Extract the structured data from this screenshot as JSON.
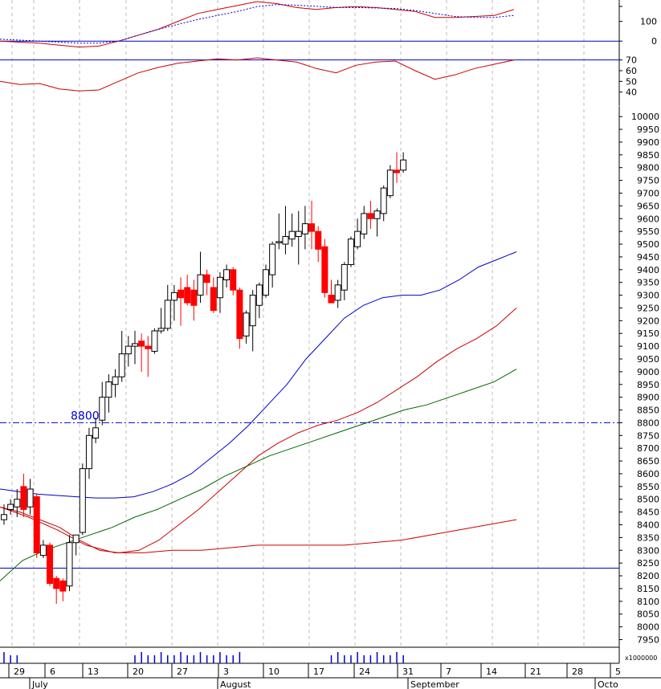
{
  "chart_data": {
    "type": "candlestick",
    "colors": {
      "up": "#ffffff",
      "down": "#ff0000",
      "candle_outline": "#000000",
      "ma_short": "#0000cc",
      "ma_mid": "#cc0000",
      "ma_long": "#006600",
      "reference_line": "#0000cc",
      "grid": "#bbbbbb",
      "volume": "#0000cc"
    },
    "price_axis": {
      "ticks": [
        7950,
        8000,
        8050,
        8100,
        8150,
        8200,
        8250,
        8300,
        8350,
        8400,
        8450,
        8500,
        8550,
        8600,
        8650,
        8700,
        8750,
        8800,
        8850,
        8900,
        8950,
        9000,
        9050,
        9100,
        9150,
        9200,
        9250,
        9300,
        9350,
        9400,
        9450,
        9500,
        9550,
        9600,
        9650,
        9700,
        9750,
        9800,
        9850,
        9900,
        9950,
        10000
      ],
      "range": [
        7920,
        10010
      ]
    },
    "oscillator_top": {
      "tick_labels": [
        "100",
        "0"
      ],
      "range": [
        -60,
        200
      ],
      "zero_line": 0,
      "line1": [
        0,
        -5,
        -10,
        -20,
        -30,
        -25,
        0,
        30,
        60,
        100,
        140,
        160,
        180,
        200,
        190,
        170,
        160,
        170,
        175,
        170,
        160,
        150,
        120,
        120,
        125,
        130,
        160
      ],
      "line2": [
        10,
        5,
        0,
        -5,
        -10,
        -10,
        0,
        30,
        60,
        85,
        110,
        130,
        150,
        175,
        185,
        182,
        176,
        170,
        170,
        168,
        165,
        155,
        140,
        125,
        120,
        120,
        130
      ]
    },
    "oscillator_rsi": {
      "tick_labels": [
        "70",
        "60",
        "50",
        "40"
      ],
      "range": [
        30,
        75
      ],
      "reference_line": 70,
      "line": [
        50,
        47,
        48,
        43,
        41,
        42,
        50,
        58,
        63,
        67,
        69,
        71,
        70,
        72,
        70,
        68,
        62,
        58,
        65,
        68,
        69,
        60,
        52,
        56,
        62,
        66,
        70
      ]
    },
    "x_axis": {
      "day_labels": [
        "29",
        "6",
        "13",
        "20",
        "27",
        "3",
        "10",
        "17",
        "24",
        "31",
        "7",
        "14",
        "21",
        "28",
        "5"
      ],
      "month_labels": [
        "July",
        "August",
        "September",
        "Octo"
      ],
      "volume_unit": "x1000000"
    },
    "candles": [
      {
        "o": 8420,
        "h": 8480,
        "l": 8400,
        "c": 8440
      },
      {
        "o": 8460,
        "h": 8500,
        "l": 8440,
        "c": 8480
      },
      {
        "o": 8470,
        "h": 8540,
        "l": 8430,
        "c": 8500
      },
      {
        "o": 8550,
        "h": 8600,
        "l": 8430,
        "c": 8460
      },
      {
        "o": 8470,
        "h": 8580,
        "l": 8440,
        "c": 8540
      },
      {
        "o": 8510,
        "h": 8520,
        "l": 8270,
        "c": 8290
      },
      {
        "o": 8280,
        "h": 8340,
        "l": 8270,
        "c": 8320
      },
      {
        "o": 8320,
        "h": 8330,
        "l": 8160,
        "c": 8170
      },
      {
        "o": 8190,
        "h": 8200,
        "l": 8090,
        "c": 8150
      },
      {
        "o": 8180,
        "h": 8190,
        "l": 8100,
        "c": 8140
      },
      {
        "o": 8160,
        "h": 8360,
        "l": 8140,
        "c": 8330
      },
      {
        "o": 8330,
        "h": 8360,
        "l": 8280,
        "c": 8360
      },
      {
        "o": 8370,
        "h": 8640,
        "l": 8360,
        "c": 8620
      },
      {
        "o": 8620,
        "h": 8780,
        "l": 8580,
        "c": 8750
      },
      {
        "o": 8740,
        "h": 8820,
        "l": 8720,
        "c": 8780
      },
      {
        "o": 8810,
        "h": 8960,
        "l": 8790,
        "c": 8900
      },
      {
        "o": 8900,
        "h": 8990,
        "l": 8840,
        "c": 8960
      },
      {
        "o": 8950,
        "h": 9010,
        "l": 8900,
        "c": 8980
      },
      {
        "o": 8980,
        "h": 9160,
        "l": 8960,
        "c": 9070
      },
      {
        "o": 9070,
        "h": 9140,
        "l": 9020,
        "c": 9100
      },
      {
        "o": 9100,
        "h": 9160,
        "l": 9030,
        "c": 9110
      },
      {
        "o": 9120,
        "h": 9150,
        "l": 9000,
        "c": 9100
      },
      {
        "o": 9100,
        "h": 9140,
        "l": 8980,
        "c": 9090
      },
      {
        "o": 9080,
        "h": 9170,
        "l": 9070,
        "c": 9160
      },
      {
        "o": 9160,
        "h": 9250,
        "l": 9150,
        "c": 9170
      },
      {
        "o": 9170,
        "h": 9340,
        "l": 9160,
        "c": 9280
      },
      {
        "o": 9280,
        "h": 9340,
        "l": 9200,
        "c": 9310
      },
      {
        "o": 9320,
        "h": 9370,
        "l": 9180,
        "c": 9290
      },
      {
        "o": 9330,
        "h": 9380,
        "l": 9260,
        "c": 9270
      },
      {
        "o": 9320,
        "h": 9360,
        "l": 9200,
        "c": 9260
      },
      {
        "o": 9300,
        "h": 9470,
        "l": 9270,
        "c": 9380
      },
      {
        "o": 9380,
        "h": 9400,
        "l": 9300,
        "c": 9350
      },
      {
        "o": 9330,
        "h": 9370,
        "l": 9230,
        "c": 9240
      },
      {
        "o": 9290,
        "h": 9390,
        "l": 9230,
        "c": 9370
      },
      {
        "o": 9360,
        "h": 9420,
        "l": 9330,
        "c": 9400
      },
      {
        "o": 9400,
        "h": 9410,
        "l": 9300,
        "c": 9320
      },
      {
        "o": 9320,
        "h": 9330,
        "l": 9090,
        "c": 9130
      },
      {
        "o": 9140,
        "h": 9240,
        "l": 9110,
        "c": 9230
      },
      {
        "o": 9180,
        "h": 9320,
        "l": 9080,
        "c": 9300
      },
      {
        "o": 9260,
        "h": 9350,
        "l": 9210,
        "c": 9340
      },
      {
        "o": 9300,
        "h": 9420,
        "l": 9290,
        "c": 9400
      },
      {
        "o": 9380,
        "h": 9510,
        "l": 9330,
        "c": 9500
      },
      {
        "o": 9510,
        "h": 9620,
        "l": 9480,
        "c": 9510
      },
      {
        "o": 9500,
        "h": 9650,
        "l": 9460,
        "c": 9530
      },
      {
        "o": 9520,
        "h": 9620,
        "l": 9490,
        "c": 9550
      },
      {
        "o": 9530,
        "h": 9630,
        "l": 9420,
        "c": 9550
      },
      {
        "o": 9540,
        "h": 9650,
        "l": 9480,
        "c": 9580
      },
      {
        "o": 9580,
        "h": 9670,
        "l": 9480,
        "c": 9550
      },
      {
        "o": 9550,
        "h": 9570,
        "l": 9430,
        "c": 9480
      },
      {
        "o": 9490,
        "h": 9520,
        "l": 9290,
        "c": 9310
      },
      {
        "o": 9300,
        "h": 9360,
        "l": 9280,
        "c": 9270
      },
      {
        "o": 9280,
        "h": 9360,
        "l": 9250,
        "c": 9340
      },
      {
        "o": 9320,
        "h": 9430,
        "l": 9280,
        "c": 9420
      },
      {
        "o": 9420,
        "h": 9530,
        "l": 9410,
        "c": 9520
      },
      {
        "o": 9490,
        "h": 9600,
        "l": 9480,
        "c": 9550
      },
      {
        "o": 9540,
        "h": 9650,
        "l": 9520,
        "c": 9620
      },
      {
        "o": 9620,
        "h": 9670,
        "l": 9560,
        "c": 9600
      },
      {
        "o": 9600,
        "h": 9640,
        "l": 9530,
        "c": 9630
      },
      {
        "o": 9620,
        "h": 9730,
        "l": 9590,
        "c": 9720
      },
      {
        "o": 9690,
        "h": 9810,
        "l": 9680,
        "c": 9790
      },
      {
        "o": 9790,
        "h": 9860,
        "l": 9740,
        "c": 9780
      },
      {
        "o": 9790,
        "h": 9860,
        "l": 9780,
        "c": 9830
      }
    ],
    "ma_short": [
      8540,
      8530,
      8520,
      8515,
      8510,
      8505,
      8505,
      8510,
      8530,
      8560,
      8600,
      8660,
      8720,
      8790,
      8870,
      8950,
      9050,
      9130,
      9210,
      9260,
      9290,
      9300,
      9300,
      9320,
      9360,
      9410,
      9440,
      9470
    ],
    "ma_mid": [
      8470,
      8450,
      8420,
      8390,
      8340,
      8300,
      8290,
      8300,
      8340,
      8400,
      8460,
      8530,
      8600,
      8670,
      8720,
      8760,
      8790,
      8810,
      8840,
      8880,
      8930,
      8980,
      9040,
      9090,
      9130,
      9180,
      9250
    ],
    "ma_long": [
      8180,
      8260,
      8300,
      8330,
      8360,
      8390,
      8430,
      8460,
      8500,
      8540,
      8590,
      8630,
      8670,
      8700,
      8730,
      8760,
      8790,
      8820,
      8850,
      8870,
      8900,
      8930,
      8960,
      9010
    ],
    "ma_low": [
      8470,
      8430,
      8380,
      8320,
      8290,
      8290,
      8300,
      8300,
      8310,
      8320,
      8320,
      8320,
      8320,
      8330,
      8340,
      8360,
      8380,
      8400,
      8420
    ],
    "reference_lines": [
      {
        "value": 8800,
        "label": "8800",
        "style": "dash-dot"
      },
      {
        "value": 8230,
        "label": "",
        "style": "solid"
      }
    ],
    "volume_bars": [
      1,
      1,
      1,
      0,
      0,
      0,
      0,
      0,
      0,
      0,
      0,
      0,
      0,
      0,
      0,
      0,
      0,
      0,
      0,
      0,
      1,
      1,
      1,
      1,
      1,
      1,
      1,
      1,
      1,
      1,
      1,
      1,
      1,
      1,
      1,
      1,
      1,
      0,
      0,
      0,
      0,
      0,
      0,
      0,
      0,
      0,
      0,
      0,
      0,
      0,
      1,
      1,
      1,
      1,
      1,
      1,
      1,
      1,
      1,
      1,
      1,
      1
    ]
  }
}
